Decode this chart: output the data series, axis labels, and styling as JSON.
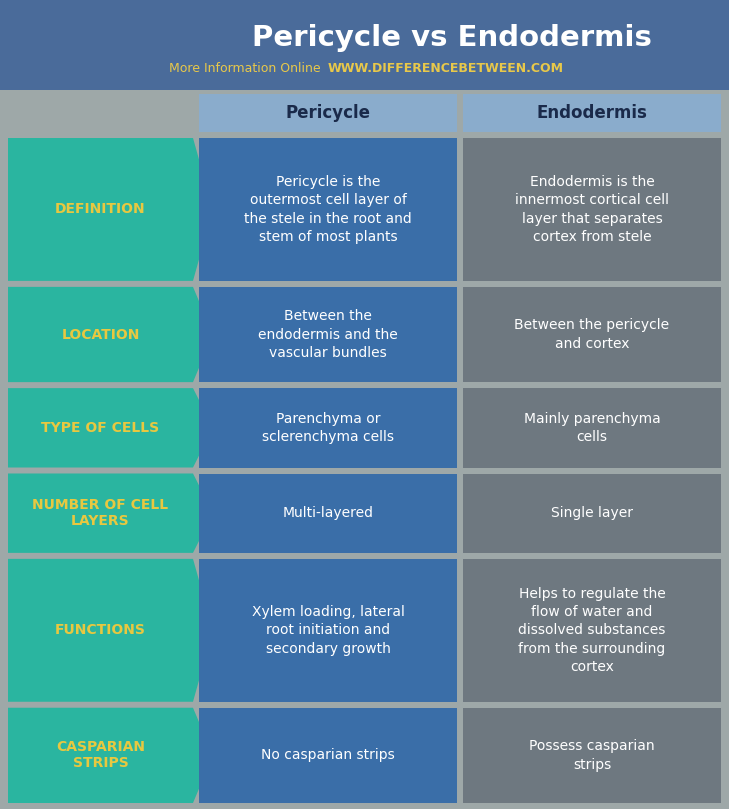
{
  "title": "Pericycle vs Endodermis",
  "subtitle_normal": "More Information Online",
  "subtitle_bold": "WWW.DIFFERENCEBETWEEN.COM",
  "bg_color": "#9ea8a8",
  "header_bg": "#4a6b9a",
  "title_color": "#ffffff",
  "subtitle_normal_color": "#e8c84a",
  "subtitle_bold_color": "#e8c84a",
  "arrow_color": "#2ab5a0",
  "arrow_label_color": "#e8c840",
  "pericycle_col_color": "#3a6ea8",
  "endodermis_col_color": "#6e7880",
  "header_col_color": "#8aaccc",
  "header_col_text": "#1a2a4a",
  "cell_text_color": "#ffffff",
  "rows": [
    {
      "label": "DEFINITION",
      "pericycle": "Pericycle is the\noutermost cell layer of\nthe stele in the root and\nstem of most plants",
      "endodermis": "Endodermis is the\ninnermost cortical cell\nlayer that separates\ncortex from stele"
    },
    {
      "label": "LOCATION",
      "pericycle": "Between the\nendodermis and the\nvascular bundles",
      "endodermis": "Between the pericycle\nand cortex"
    },
    {
      "label": "TYPE OF CELLS",
      "pericycle": "Parenchyma or\nsclerenchyma cells",
      "endodermis": "Mainly parenchyma\ncells"
    },
    {
      "label": "NUMBER OF CELL\nLAYERS",
      "pericycle": "Multi-layered",
      "endodermis": "Single layer"
    },
    {
      "label": "FUNCTIONS",
      "pericycle": "Xylem loading, lateral\nroot initiation and\nsecondary growth",
      "endodermis": "Helps to regulate the\nflow of water and\ndissolved substances\nfrom the surrounding\ncortex"
    },
    {
      "label": "CASPARIAN\nSTRIPS",
      "pericycle": "No casparian strips",
      "endodermis": "Possess casparian\nstrips"
    }
  ],
  "row_heights_raw": [
    4.5,
    3.0,
    2.5,
    2.5,
    4.5,
    3.0
  ],
  "figw": 7.29,
  "figh": 8.09,
  "dpi": 100
}
